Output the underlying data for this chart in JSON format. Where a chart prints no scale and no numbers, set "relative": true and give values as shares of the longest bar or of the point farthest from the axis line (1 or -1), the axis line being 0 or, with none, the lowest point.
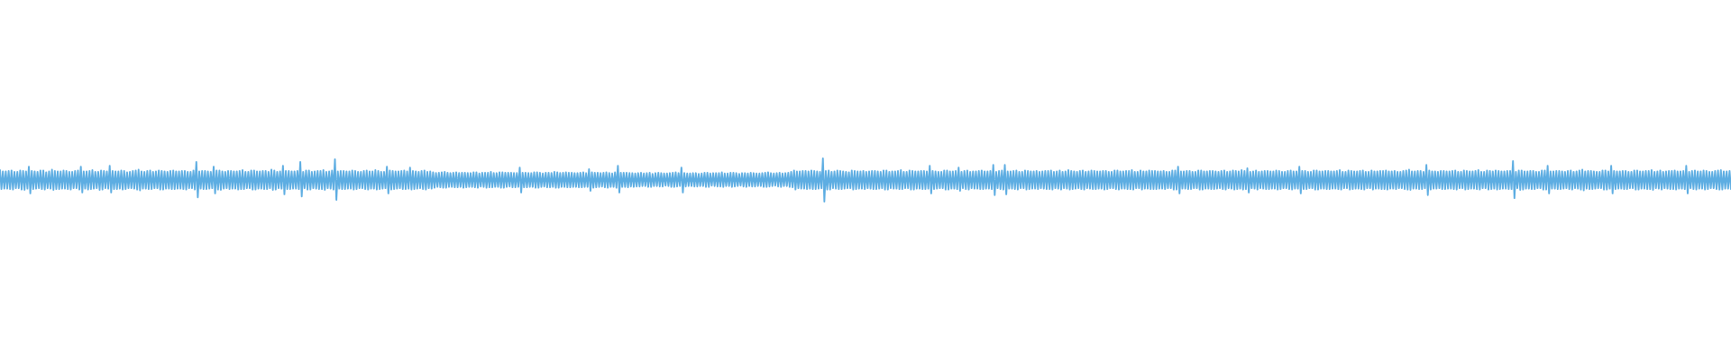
{
  "chart_data": {
    "type": "line",
    "relative": true,
    "color": "#5dade2",
    "categories": [
      null,
      null,
      null,
      null,
      null,
      null,
      null,
      null,
      null,
      null,
      null,
      null,
      null,
      null,
      null,
      null,
      null,
      null,
      null,
      null,
      null,
      null,
      null,
      null,
      null,
      null,
      null,
      null,
      null,
      null,
      null,
      null,
      null,
      null,
      null,
      null,
      null,
      null,
      null,
      null,
      null,
      null,
      null,
      null,
      null,
      null,
      null,
      null,
      null,
      null,
      null,
      null,
      null,
      null,
      null,
      null,
      null,
      null,
      null,
      null,
      null,
      null,
      null,
      null,
      null,
      null,
      null,
      null,
      null,
      null,
      null,
      null,
      null,
      null,
      null,
      null,
      null,
      null,
      null,
      null,
      null,
      null,
      null,
      null,
      null,
      null,
      null,
      null,
      null,
      null,
      null,
      null,
      null,
      null,
      null,
      null,
      null,
      null,
      null,
      null,
      null,
      null,
      null,
      null,
      null,
      null,
      null,
      null,
      null,
      null,
      null,
      null,
      null,
      null,
      null,
      null,
      null,
      null,
      null,
      null,
      null,
      null,
      null,
      null,
      null,
      null,
      null,
      null,
      null,
      null,
      null,
      null,
      null,
      null,
      null,
      null,
      null,
      null,
      null,
      null,
      null,
      null,
      null,
      null,
      null,
      null,
      null,
      null,
      null,
      null,
      null,
      null,
      null,
      null,
      null,
      null,
      null,
      null,
      null,
      null,
      null,
      null,
      null,
      null,
      null,
      null,
      null,
      null,
      null,
      null,
      null,
      null,
      null,
      null,
      null,
      null,
      null,
      null,
      null,
      null,
      null,
      null,
      null,
      null,
      null,
      null,
      null,
      null,
      null,
      null,
      null,
      null,
      null,
      null,
      null,
      null,
      null,
      null,
      null,
      null,
      null,
      null,
      null,
      null,
      null,
      null,
      null,
      null,
      null,
      null,
      null,
      null,
      null,
      null,
      null,
      null,
      null,
      null,
      null,
      null,
      null,
      null,
      null,
      null,
      null,
      null,
      null,
      null,
      null,
      null,
      null,
      null,
      null,
      null,
      null,
      null,
      null,
      null,
      null,
      null,
      null,
      null,
      null,
      null,
      null,
      null,
      null,
      null,
      null,
      null,
      null,
      null,
      null,
      null,
      null,
      null,
      null,
      null,
      null,
      null,
      null,
      null,
      null,
      null,
      null,
      null,
      null,
      null,
      null,
      null,
      null,
      null,
      null,
      null,
      null,
      null,
      null,
      null,
      null,
      null,
      null,
      null,
      null,
      null,
      null,
      null,
      null,
      null,
      null,
      null,
      null,
      null,
      null,
      null,
      null,
      null,
      null,
      null,
      null,
      null,
      null,
      null,
      null,
      null,
      null,
      null,
      null,
      null,
      null,
      null,
      null,
      null,
      null,
      null,
      null,
      null,
      null,
      null,
      null,
      null,
      null,
      null,
      null,
      null,
      null,
      null,
      null,
      null,
      null,
      null,
      null,
      null,
      null,
      null,
      null,
      null,
      null,
      null,
      null,
      null,
      null,
      null,
      null,
      null,
      null,
      null,
      null,
      null,
      null,
      null,
      null,
      null,
      null,
      null,
      null,
      null,
      null,
      null,
      null,
      null,
      null,
      null,
      null,
      null,
      null,
      null,
      null,
      null,
      null,
      null,
      null,
      null,
      null,
      null,
      null,
      null,
      null,
      null,
      null,
      null,
      null,
      null,
      null,
      null,
      null,
      null,
      null,
      null,
      null,
      null,
      null,
      null,
      null,
      null,
      null,
      null,
      null,
      null,
      null,
      null,
      null,
      null,
      null,
      null,
      null,
      null,
      null,
      null,
      null,
      null,
      null,
      null,
      null,
      null,
      null,
      null,
      null,
      null,
      null,
      null,
      null,
      null,
      null,
      null,
      null,
      null,
      null,
      null,
      null,
      null,
      null,
      null,
      null,
      null,
      null,
      null,
      null,
      null,
      null,
      null,
      null,
      null,
      null,
      null,
      null,
      null,
      null,
      null,
      null,
      null,
      null,
      null,
      null,
      null,
      null,
      null,
      null,
      null,
      null,
      null,
      null,
      null,
      null,
      null,
      null,
      null,
      null,
      null,
      null,
      null,
      null,
      null,
      null,
      null,
      null,
      null,
      null,
      null,
      null,
      null,
      null,
      null,
      null,
      null,
      null,
      null,
      null,
      null,
      null,
      null,
      null,
      null,
      null,
      null,
      null,
      null,
      null,
      null,
      null,
      null,
      null,
      null,
      null,
      null,
      null,
      null,
      null,
      null,
      null,
      null,
      null,
      null,
      null,
      null,
      null,
      null,
      null,
      null,
      null,
      null,
      null,
      null,
      null,
      null,
      null,
      null,
      null,
      null,
      null,
      null,
      null,
      null,
      null,
      null,
      null,
      null,
      null,
      null,
      null,
      null,
      null,
      null,
      null,
      null,
      null,
      null,
      null,
      null,
      null,
      null,
      null,
      null,
      null,
      null,
      null,
      null,
      null,
      null,
      null,
      null,
      null,
      null,
      null,
      null,
      null,
      null,
      null,
      null,
      null,
      null,
      null,
      null,
      null,
      null,
      null,
      null,
      null,
      null,
      null,
      null,
      null,
      null,
      null,
      null,
      null,
      null,
      null,
      null,
      null,
      null,
      null,
      null,
      null,
      null,
      null,
      null,
      null,
      null,
      null,
      null,
      null,
      null,
      null,
      null,
      null,
      null,
      null,
      null,
      null,
      null,
      null,
      null,
      null,
      null,
      null,
      null,
      null,
      null,
      null,
      null,
      null,
      null,
      null,
      null,
      null,
      null,
      null,
      null,
      null,
      null,
      null,
      null,
      null,
      null,
      null,
      null,
      null,
      null,
      null,
      null,
      null,
      null,
      null,
      null,
      null,
      null,
      null,
      null,
      null,
      null,
      null,
      null,
      null,
      null,
      null,
      null,
      null,
      null,
      null,
      null,
      null,
      null,
      null,
      null,
      null,
      null,
      null,
      null,
      null,
      null,
      null,
      null,
      null,
      null,
      null,
      null,
      null,
      null,
      null,
      null,
      null,
      null,
      null,
      null,
      null,
      null,
      null,
      null,
      null,
      null,
      null,
      null,
      null,
      null,
      null,
      null,
      null,
      null,
      null,
      null,
      null,
      null,
      null,
      null,
      null,
      null,
      null,
      null,
      null,
      null,
      null,
      null,
      null,
      null,
      null,
      null,
      null,
      null,
      null,
      null,
      null,
      null,
      null,
      null,
      null,
      null,
      null,
      null,
      null,
      null,
      null,
      null,
      null,
      null,
      null,
      null,
      null,
      null,
      null,
      null,
      null,
      null,
      null,
      null,
      null,
      null,
      null,
      null,
      null,
      null,
      null,
      null,
      null,
      null,
      null,
      null,
      null,
      null,
      null,
      null,
      null,
      null,
      null,
      null,
      null,
      null,
      null,
      null,
      null,
      null,
      null,
      null,
      null,
      null,
      null,
      null,
      null,
      null,
      null,
      null,
      null,
      null,
      null,
      null,
      null,
      null,
      null,
      null,
      null,
      null,
      null,
      null,
      null,
      null,
      null,
      null,
      null,
      null,
      null,
      null,
      null,
      null,
      null,
      null,
      null,
      null,
      null,
      null,
      null,
      null,
      null,
      null,
      null,
      null,
      null,
      null,
      null,
      null,
      null,
      null,
      null,
      null,
      null,
      null,
      null,
      null,
      null,
      null,
      null,
      null,
      null,
      null,
      null,
      null,
      null,
      null,
      null,
      null,
      null,
      null,
      null,
      null,
      null,
      null,
      null,
      null,
      null,
      null,
      null,
      null,
      null,
      null,
      null,
      null,
      null,
      null,
      null,
      null,
      null,
      null,
      null,
      null,
      null,
      null,
      null,
      null,
      null,
      null,
      null,
      null,
      null,
      null,
      null,
      null,
      null,
      null,
      null,
      null,
      null,
      null,
      null,
      null,
      null,
      null,
      null,
      null,
      null,
      null,
      null,
      null,
      null,
      null,
      null,
      null,
      null,
      null,
      null,
      null,
      null,
      null,
      null,
      null,
      null,
      null,
      null,
      null,
      null,
      null,
      null,
      null,
      null,
      null,
      null,
      null,
      null,
      null,
      null,
      null,
      null,
      null,
      null,
      null,
      null,
      null,
      null,
      null,
      null,
      null,
      null,
      null,
      null,
      null,
      null,
      null,
      null,
      null,
      null,
      null,
      null,
      null,
      null,
      null,
      null,
      null,
      null,
      null,
      null,
      null,
      null,
      null,
      null,
      null,
      null,
      null,
      null,
      null,
      null,
      null,
      null,
      null,
      null,
      null,
      null,
      null,
      null,
      null,
      null,
      null,
      null,
      null,
      null,
      null,
      null,
      null,
      null,
      null,
      null,
      null,
      null,
      null,
      null,
      null,
      null,
      null,
      null,
      null,
      null,
      null,
      null,
      null,
      null,
      null,
      null,
      null,
      null,
      null,
      null,
      null,
      null,
      null,
      null,
      null,
      null,
      null,
      null,
      null,
      null,
      null,
      null,
      null,
      null,
      null,
      null,
      null,
      null,
      null,
      null,
      null,
      null,
      null,
      null,
      null,
      null,
      null,
      null,
      null,
      null,
      null,
      null,
      null,
      null,
      null,
      null,
      null,
      null,
      null,
      null,
      null,
      null,
      null,
      null,
      null,
      null,
      null,
      null,
      null,
      null,
      null,
      null,
      null,
      null,
      null,
      null,
      null,
      null,
      null,
      null,
      null,
      null,
      null,
      null,
      null,
      null,
      null,
      null,
      null,
      null,
      null,
      null,
      null,
      null,
      null,
      null,
      null,
      null,
      null,
      null,
      null,
      null,
      null,
      null,
      null,
      null,
      null,
      null,
      null,
      null,
      null,
      null,
      null,
      null,
      null,
      null,
      null,
      null,
      null,
      null,
      null,
      null,
      null,
      null,
      null,
      null,
      null,
      null,
      null,
      null,
      null,
      null,
      null,
      null,
      null,
      null,
      null,
      null,
      null,
      null,
      null,
      null,
      null,
      null,
      null,
      null,
      null,
      null,
      null,
      null,
      null,
      null,
      null,
      null,
      null,
      null,
      null,
      null,
      null,
      null,
      null,
      null,
      null,
      null,
      null,
      null,
      null,
      null,
      null,
      null,
      null,
      null,
      null,
      null,
      null,
      null,
      null,
      null,
      null,
      null,
      null,
      null,
      null,
      null,
      null,
      null,
      null,
      null,
      null,
      null,
      null,
      null,
      null,
      null,
      null,
      null,
      null,
      null,
      null,
      null,
      null,
      null,
      null,
      null,
      null,
      null,
      null,
      null,
      null,
      null,
      null,
      null,
      null,
      null,
      null,
      null,
      null,
      null,
      null,
      null,
      null,
      null,
      null
    ],
    "values": [
      0.73,
      0.29,
      0.7,
      0.3,
      0.7,
      0.3,
      0.71,
      0.29,
      0.72,
      0.28,
      0.69,
      0.31,
      0.69,
      0.31,
      0.72,
      0.28,
      0.71,
      0.27,
      0.7,
      0.3,
      0.81,
      0.19,
      0.71,
      0.29,
      0.7,
      0.3,
      0.69,
      0.31,
      0.72,
      0.29,
      0.72,
      0.28,
      0.68,
      0.31,
      0.7,
      0.3,
      0.74,
      0.27,
      0.71,
      0.29,
      0.7,
      0.29,
      0.7,
      0.3,
      0.72,
      0.3,
      0.71,
      0.29,
      0.69,
      0.28,
      0.69,
      0.31,
      0.71,
      0.31,
      0.72,
      0.28,
      0.81,
      0.21,
      0.7,
      0.3,
      0.7,
      0.28,
      0.71,
      0.29,
      0.73,
      0.3,
      0.69,
      0.31,
      0.69,
      0.27,
      0.72,
      0.28,
      0.71,
      0.31,
      0.7,
      0.3,
      0.83,
      0.21,
      0.71,
      0.29,
      0.7,
      0.29,
      0.7,
      0.3,
      0.72,
      0.28,
      0.71,
      0.29,
      0.68,
      0.31,
      0.69,
      0.31,
      0.71,
      0.3,
      0.72,
      0.28,
      0.74,
      0.26,
      0.7,
      0.3,
      0.69,
      0.3,
      0.71,
      0.29,
      0.72,
      0.29,
      0.69,
      0.31,
      0.7,
      0.31,
      0.72,
      0.28,
      0.71,
      0.28,
      0.7,
      0.3,
      0.69,
      0.3,
      0.71,
      0.29,
      0.72,
      0.29,
      0.7,
      0.3,
      0.7,
      0.3,
      0.71,
      0.29,
      0.71,
      0.28,
      0.69,
      0.31,
      0.69,
      0.31,
      0.72,
      0.28,
      0.92,
      0.1,
      0.7,
      0.3,
      0.71,
      0.29,
      0.71,
      0.29,
      0.7,
      0.3,
      0.69,
      0.31,
      0.81,
      0.19,
      0.72,
      0.28,
      0.72,
      0.27,
      0.7,
      0.3,
      0.69,
      0.31,
      0.71,
      0.29,
      0.71,
      0.3,
      0.7,
      0.3,
      0.7,
      0.28,
      0.71,
      0.29,
      0.73,
      0.29,
      0.69,
      0.31,
      0.69,
      0.31,
      0.72,
      0.28,
      0.72,
      0.28,
      0.7,
      0.3,
      0.7,
      0.3,
      0.71,
      0.29,
      0.71,
      0.29,
      0.69,
      0.31,
      0.74,
      0.27,
      0.72,
      0.28,
      0.69,
      0.31,
      0.7,
      0.3,
      0.83,
      0.17,
      0.71,
      0.29,
      0.71,
      0.29,
      0.7,
      0.3,
      0.7,
      0.3,
      0.71,
      0.29,
      0.92,
      0.12,
      0.69,
      0.31,
      0.72,
      0.28,
      0.72,
      0.28,
      0.69,
      0.31,
      0.7,
      0.3,
      0.71,
      0.29,
      0.71,
      0.29,
      0.73,
      0.27,
      0.69,
      0.31,
      0.7,
      0.3,
      0.72,
      0.28,
      0.98,
      0.04,
      0.7,
      0.3,
      0.71,
      0.29,
      0.71,
      0.29,
      0.7,
      0.3,
      0.7,
      0.3,
      0.72,
      0.28,
      0.71,
      0.29,
      0.69,
      0.31,
      0.69,
      0.31,
      0.71,
      0.29,
      0.72,
      0.28,
      0.7,
      0.3,
      0.7,
      0.3,
      0.73,
      0.28,
      0.71,
      0.29,
      0.69,
      0.3,
      0.69,
      0.31,
      0.81,
      0.19,
      0.72,
      0.28,
      0.71,
      0.29,
      0.7,
      0.3,
      0.7,
      0.31,
      0.71,
      0.29,
      0.72,
      0.29,
      0.7,
      0.3,
      0.79,
      0.28,
      0.71,
      0.29,
      0.7,
      0.3,
      0.69,
      0.31,
      0.71,
      0.29,
      0.72,
      0.28,
      0.69,
      0.31,
      0.7,
      0.3,
      0.68,
      0.32,
      0.66,
      0.34,
      0.67,
      0.33,
      0.68,
      0.32,
      0.69,
      0.32,
      0.67,
      0.34,
      0.66,
      0.34,
      0.67,
      0.33,
      0.68,
      0.33,
      0.66,
      0.34,
      0.67,
      0.32,
      0.67,
      0.33,
      0.66,
      0.34,
      0.66,
      0.34,
      0.68,
      0.33,
      0.68,
      0.32,
      0.65,
      0.35,
      0.67,
      0.34,
      0.67,
      0.32,
      0.67,
      0.33,
      0.69,
      0.33,
      0.66,
      0.34,
      0.66,
      0.34,
      0.68,
      0.32,
      0.68,
      0.32,
      0.67,
      0.34,
      0.67,
      0.35,
      0.67,
      0.33,
      0.66,
      0.33,
      0.66,
      0.34,
      0.79,
      0.21,
      0.67,
      0.33,
      0.67,
      0.33,
      0.66,
      0.34,
      0.66,
      0.34,
      0.68,
      0.32,
      0.68,
      0.32,
      0.67,
      0.34,
      0.65,
      0.35,
      0.67,
      0.33,
      0.67,
      0.33,
      0.66,
      0.34,
      0.69,
      0.32,
      0.68,
      0.32,
      0.66,
      0.34,
      0.67,
      0.34,
      0.68,
      0.33,
      0.67,
      0.33,
      0.67,
      0.34,
      0.66,
      0.34,
      0.66,
      0.33,
      0.67,
      0.33,
      0.68,
      0.34,
      0.66,
      0.34,
      0.75,
      0.25,
      0.68,
      0.32,
      0.67,
      0.33,
      0.67,
      0.34,
      0.66,
      0.35,
      0.67,
      0.33,
      0.68,
      0.32,
      0.66,
      0.34,
      0.65,
      0.34,
      0.68,
      0.32,
      0.83,
      0.21,
      0.67,
      0.34,
      0.67,
      0.34,
      0.67,
      0.33,
      0.66,
      0.35,
      0.66,
      0.34,
      0.65,
      0.35,
      0.66,
      0.35,
      0.67,
      0.36,
      0.65,
      0.36,
      0.66,
      0.34,
      0.67,
      0.34,
      0.64,
      0.36,
      0.66,
      0.36,
      0.67,
      0.35,
      0.66,
      0.35,
      0.65,
      0.37,
      0.65,
      0.36,
      0.66,
      0.34,
      0.67,
      0.34,
      0.68,
      0.35,
      0.66,
      0.36,
      0.79,
      0.21,
      0.66,
      0.35,
      0.65,
      0.36,
      0.65,
      0.36,
      0.66,
      0.35,
      0.66,
      0.35,
      0.64,
      0.36,
      0.65,
      0.36,
      0.67,
      0.34,
      0.67,
      0.34,
      0.65,
      0.37,
      0.66,
      0.36,
      0.66,
      0.35,
      0.66,
      0.35,
      0.68,
      0.34,
      0.65,
      0.36,
      0.65,
      0.36,
      0.67,
      0.34,
      0.67,
      0.35,
      0.66,
      0.36,
      0.64,
      0.37,
      0.66,
      0.35,
      0.66,
      0.34,
      0.65,
      0.36,
      0.67,
      0.35,
      0.66,
      0.35,
      0.65,
      0.36,
      0.65,
      0.36,
      0.66,
      0.34,
      0.67,
      0.34,
      0.68,
      0.35,
      0.66,
      0.36,
      0.65,
      0.37,
      0.66,
      0.35,
      0.67,
      0.34,
      0.65,
      0.36,
      0.66,
      0.36,
      0.67,
      0.34,
      0.69,
      0.33,
      0.72,
      0.28,
      0.7,
      0.31,
      0.7,
      0.3,
      0.71,
      0.3,
      0.71,
      0.29,
      0.7,
      0.3,
      0.72,
      0.29,
      0.71,
      0.29,
      0.7,
      0.3,
      0.69,
      0.31,
      1.0,
      0.0,
      0.71,
      0.28,
      0.72,
      0.28,
      0.69,
      0.31,
      0.7,
      0.3,
      0.72,
      0.29,
      0.71,
      0.29,
      0.7,
      0.3,
      0.69,
      0.31,
      0.68,
      0.31,
      0.72,
      0.28,
      0.71,
      0.29,
      0.7,
      0.3,
      0.7,
      0.3,
      0.71,
      0.29,
      0.69,
      0.31,
      0.7,
      0.3,
      0.71,
      0.29,
      0.71,
      0.29,
      0.7,
      0.3,
      0.69,
      0.31,
      0.72,
      0.28,
      0.72,
      0.28,
      0.69,
      0.31,
      0.7,
      0.3,
      0.7,
      0.3,
      0.71,
      0.29,
      0.73,
      0.29,
      0.69,
      0.31,
      0.69,
      0.31,
      0.72,
      0.28,
      0.71,
      0.28,
      0.7,
      0.3,
      0.7,
      0.3,
      0.71,
      0.29,
      0.71,
      0.29,
      0.7,
      0.3,
      0.83,
      0.19,
      0.71,
      0.29,
      0.7,
      0.3,
      0.69,
      0.31,
      0.69,
      0.31,
      0.72,
      0.28,
      0.72,
      0.28,
      0.7,
      0.3,
      0.7,
      0.3,
      0.71,
      0.29,
      0.79,
      0.25,
      0.69,
      0.31,
      0.71,
      0.29,
      0.72,
      0.28,
      0.69,
      0.31,
      0.7,
      0.3,
      0.7,
      0.3,
      0.71,
      0.29,
      0.72,
      0.29,
      0.7,
      0.3,
      0.7,
      0.3,
      0.71,
      0.29,
      0.85,
      0.15,
      0.69,
      0.31,
      0.71,
      0.29,
      0.72,
      0.28,
      0.85,
      0.17,
      0.7,
      0.3,
      0.7,
      0.3,
      0.71,
      0.29,
      0.72,
      0.28,
      0.69,
      0.31,
      0.69,
      0.31,
      0.72,
      0.28,
      0.71,
      0.29,
      0.7,
      0.3,
      0.7,
      0.3,
      0.71,
      0.29,
      0.69,
      0.31,
      0.7,
      0.3,
      0.71,
      0.29,
      0.71,
      0.29,
      0.72,
      0.28,
      0.69,
      0.31,
      0.7,
      0.3,
      0.72,
      0.28,
      0.69,
      0.31,
      0.7,
      0.3,
      0.73,
      0.28,
      0.71,
      0.29,
      0.7,
      0.3,
      0.69,
      0.31,
      0.71,
      0.29,
      0.72,
      0.28,
      0.69,
      0.31,
      0.7,
      0.3,
      0.72,
      0.29,
      0.71,
      0.29,
      0.7,
      0.3,
      0.7,
      0.3,
      0.71,
      0.28,
      0.71,
      0.29,
      0.69,
      0.31,
      0.69,
      0.31,
      0.72,
      0.29,
      0.72,
      0.28,
      0.7,
      0.3,
      0.7,
      0.3,
      0.71,
      0.29,
      0.71,
      0.29,
      0.73,
      0.28,
      0.69,
      0.31,
      0.69,
      0.31,
      0.72,
      0.28,
      0.7,
      0.3,
      0.7,
      0.3,
      0.72,
      0.29,
      0.71,
      0.29,
      0.71,
      0.29,
      0.7,
      0.3,
      0.7,
      0.3,
      0.71,
      0.29,
      0.69,
      0.31,
      0.69,
      0.31,
      0.72,
      0.28,
      0.72,
      0.28,
      0.81,
      0.19,
      0.7,
      0.3,
      0.7,
      0.3,
      0.71,
      0.29,
      0.71,
      0.29,
      0.69,
      0.31,
      0.69,
      0.31,
      0.72,
      0.28,
      0.72,
      0.28,
      0.7,
      0.3,
      0.7,
      0.3,
      0.71,
      0.29,
      0.71,
      0.29,
      0.7,
      0.3,
      0.69,
      0.31,
      0.71,
      0.29,
      0.72,
      0.28,
      0.69,
      0.31,
      0.7,
      0.3,
      0.72,
      0.28,
      0.71,
      0.29,
      0.7,
      0.3,
      0.73,
      0.28,
      0.71,
      0.29,
      0.77,
      0.21,
      0.69,
      0.31,
      0.7,
      0.3,
      0.72,
      0.28,
      0.69,
      0.31,
      0.7,
      0.3,
      0.71,
      0.29,
      0.71,
      0.29,
      0.7,
      0.3,
      0.7,
      0.3,
      0.72,
      0.28,
      0.71,
      0.29,
      0.69,
      0.31,
      0.69,
      0.31,
      0.71,
      0.29,
      0.72,
      0.28,
      0.7,
      0.3,
      0.7,
      0.3,
      0.81,
      0.19,
      0.71,
      0.29,
      0.71,
      0.29,
      0.69,
      0.31,
      0.69,
      0.31,
      0.72,
      0.28,
      0.72,
      0.28,
      0.7,
      0.3,
      0.7,
      0.3,
      0.71,
      0.29,
      0.71,
      0.29,
      0.7,
      0.3,
      0.7,
      0.3,
      0.71,
      0.29,
      0.73,
      0.28,
      0.69,
      0.31,
      0.69,
      0.31,
      0.72,
      0.28,
      0.71,
      0.29,
      0.7,
      0.3,
      0.7,
      0.3,
      0.71,
      0.29,
      0.72,
      0.28,
      0.69,
      0.31,
      0.69,
      0.31,
      0.72,
      0.28,
      0.7,
      0.3,
      0.7,
      0.3,
      0.71,
      0.29,
      0.71,
      0.29,
      0.72,
      0.28,
      0.7,
      0.3,
      0.7,
      0.3,
      0.71,
      0.29,
      0.69,
      0.31,
      0.69,
      0.31,
      0.71,
      0.29,
      0.72,
      0.28,
      0.74,
      0.27,
      0.7,
      0.3,
      0.7,
      0.3,
      0.71,
      0.29,
      0.71,
      0.29,
      0.69,
      0.31,
      0.85,
      0.15,
      0.72,
      0.28,
      0.7,
      0.3,
      0.7,
      0.3,
      0.69,
      0.31,
      0.71,
      0.29,
      0.71,
      0.29,
      0.7,
      0.3,
      0.7,
      0.3,
      0.71,
      0.29,
      0.72,
      0.28,
      0.69,
      0.31,
      0.69,
      0.31,
      0.72,
      0.28,
      0.71,
      0.29,
      0.7,
      0.3,
      0.7,
      0.3,
      0.71,
      0.29,
      0.73,
      0.28,
      0.69,
      0.31,
      0.69,
      0.31,
      0.72,
      0.28,
      0.71,
      0.29,
      0.7,
      0.3,
      0.72,
      0.28,
      0.71,
      0.29,
      0.7,
      0.3,
      0.7,
      0.3,
      0.71,
      0.29,
      0.71,
      0.29,
      0.94,
      0.08,
      0.69,
      0.31,
      0.72,
      0.27,
      0.72,
      0.28,
      0.7,
      0.3,
      0.7,
      0.3,
      0.71,
      0.29,
      0.71,
      0.29,
      0.69,
      0.31,
      0.69,
      0.31,
      0.72,
      0.28,
      0.72,
      0.28,
      0.83,
      0.19,
      0.7,
      0.3,
      0.7,
      0.3,
      0.71,
      0.29,
      0.71,
      0.29,
      0.7,
      0.3,
      0.69,
      0.31,
      0.71,
      0.29,
      0.72,
      0.28,
      0.69,
      0.31,
      0.7,
      0.3,
      0.72,
      0.28,
      0.74,
      0.26,
      0.7,
      0.3,
      0.71,
      0.29,
      0.71,
      0.29,
      0.7,
      0.3,
      0.69,
      0.31,
      0.69,
      0.31,
      0.72,
      0.28,
      0.72,
      0.28,
      0.7,
      0.3,
      0.83,
      0.19,
      0.71,
      0.29,
      0.7,
      0.3,
      0.7,
      0.3,
      0.71,
      0.29,
      0.71,
      0.29,
      0.69,
      0.31,
      0.69,
      0.31,
      0.72,
      0.28,
      0.72,
      0.28,
      0.7,
      0.3,
      0.7,
      0.3,
      0.71,
      0.29,
      0.71,
      0.29,
      0.73,
      0.27,
      0.69,
      0.31,
      0.7,
      0.3,
      0.72,
      0.28,
      0.69,
      0.31,
      0.7,
      0.3,
      0.71,
      0.29,
      0.71,
      0.29,
      0.72,
      0.28,
      0.7,
      0.3,
      0.7,
      0.3,
      0.71,
      0.29,
      0.83,
      0.19,
      0.69,
      0.31,
      0.71,
      0.29,
      0.72,
      0.28,
      0.7,
      0.3,
      0.7,
      0.3,
      0.72,
      0.28,
      0.71,
      0.29,
      0.69,
      0.31,
      0.69,
      0.31,
      0.71,
      0.29,
      0.72,
      0.28,
      0.73,
      0.28,
      0.7,
      0.3,
      0.7,
      0.3,
      0.71,
      0.29
    ]
  }
}
